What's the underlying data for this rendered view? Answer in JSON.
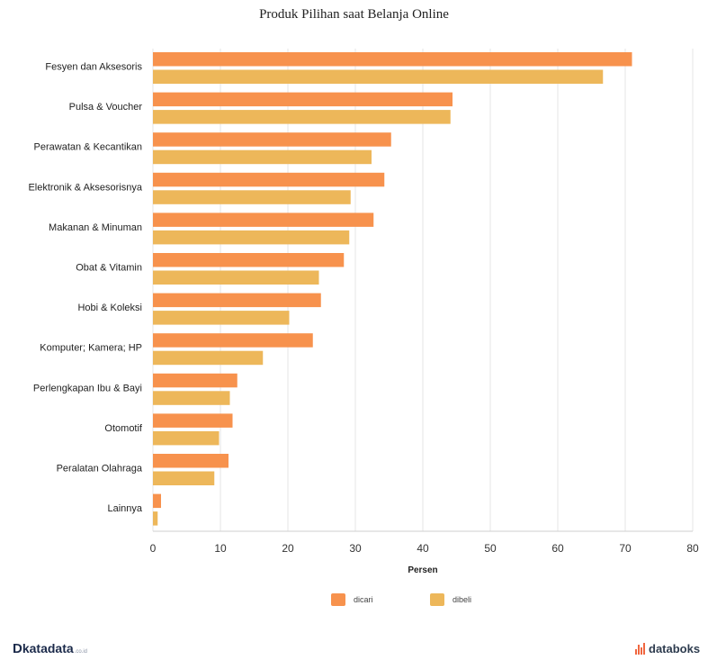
{
  "chart_data": {
    "type": "bar",
    "orientation": "horizontal",
    "title": "Produk Pilihan saat Belanja Online",
    "xlabel": "Persen",
    "ylabel": "",
    "xlim": [
      0,
      80
    ],
    "ticks": [
      0,
      10,
      20,
      30,
      40,
      50,
      60,
      70,
      80
    ],
    "grid": true,
    "legend_position": "bottom",
    "categories": [
      "Fesyen dan Aksesoris",
      "Pulsa & Voucher",
      "Perawatan & Kecantikan",
      "Elektronik & Aksesorisnya",
      "Makanan & Minuman",
      "Obat & Vitamin",
      "Hobi & Koleksi",
      "Komputer; Kamera; HP",
      "Perlengkapan Ibu & Bayi",
      "Otomotif",
      "Peralatan Olahraga",
      "Lainnya"
    ],
    "series": [
      {
        "name": "dicari",
        "color": "#f7924d",
        "values": [
          71,
          44.4,
          35.3,
          34.3,
          32.7,
          28.3,
          24.9,
          23.7,
          12.5,
          11.8,
          11.2,
          1.2
        ]
      },
      {
        "name": "dibeli",
        "color": "#edb75a",
        "values": [
          66.7,
          44.1,
          32.4,
          29.3,
          29.1,
          24.6,
          20.2,
          16.3,
          11.4,
          9.8,
          9.1,
          0.7
        ]
      }
    ]
  },
  "branding": {
    "left_logo_mark": "D",
    "left_logo_text": "katadata",
    "left_logo_suffix": ".co.id",
    "right_logo_text": "databoks",
    "right_logo_color": "#f0663f"
  }
}
